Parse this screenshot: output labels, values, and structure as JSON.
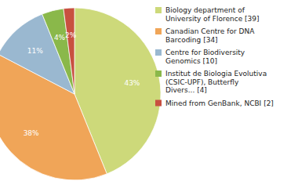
{
  "chart_data": {
    "type": "pie",
    "categories": [
      "Biology department of\nUniversity of Florence [39]",
      "Canadian Centre for DNA\nBarcoding [34]",
      "Centre for Biodiversity\nGenomics [10]",
      "Institut de Biologia Evolutiva\n(CSIC-UPF), Butterfly\nDivers... [4]",
      "Mined from GenBank, NCBI [2]"
    ],
    "values": [
      43,
      38,
      11,
      4,
      2
    ],
    "value_labels": [
      "43%",
      "38%",
      "11%",
      "4%",
      "2%"
    ],
    "colors": [
      "#cdd97a",
      "#f0a558",
      "#9ab8d0",
      "#8ab84a",
      "#c85040"
    ],
    "data_labels": true,
    "legend": "right"
  }
}
